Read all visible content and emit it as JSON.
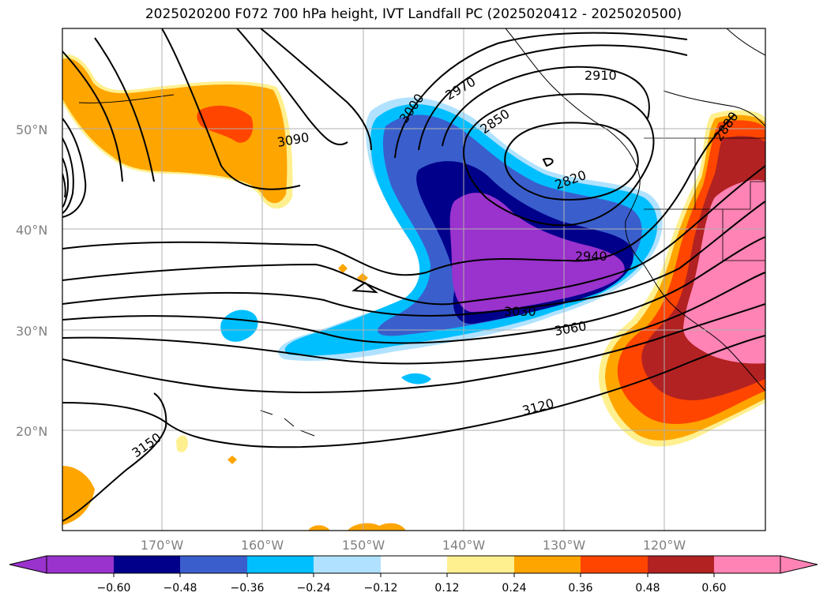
{
  "title": "2025020200 F072 700 hPa height, IVT Landfall PC (2025020412 - 2025020500)",
  "map": {
    "lon_labels": [
      "170°W",
      "160°W",
      "150°W",
      "140°W",
      "130°W",
      "120°W"
    ],
    "lat_labels": [
      "50°N",
      "40°N",
      "30°N",
      "20°N"
    ],
    "contour_labels": [
      "2820",
      "2850",
      "2880",
      "2910",
      "2940",
      "2970",
      "3000",
      "3030",
      "3060",
      "3090",
      "3120",
      "3150"
    ],
    "line_color": "#000000",
    "grid_color": "#b0b0b0"
  },
  "colorbar": {
    "ticks": [
      "−0.60",
      "−0.48",
      "−0.36",
      "−0.24",
      "−0.12",
      "0.12",
      "0.24",
      "0.36",
      "0.48",
      "0.60"
    ],
    "colors": [
      "#9a32cd",
      "#00008b",
      "#3a5fcd",
      "#00bfff",
      "#b0e2ff",
      "#ffffff",
      "#fff08f",
      "#ffa500",
      "#ff4500",
      "#b22222",
      "#ff83b4"
    ]
  }
}
